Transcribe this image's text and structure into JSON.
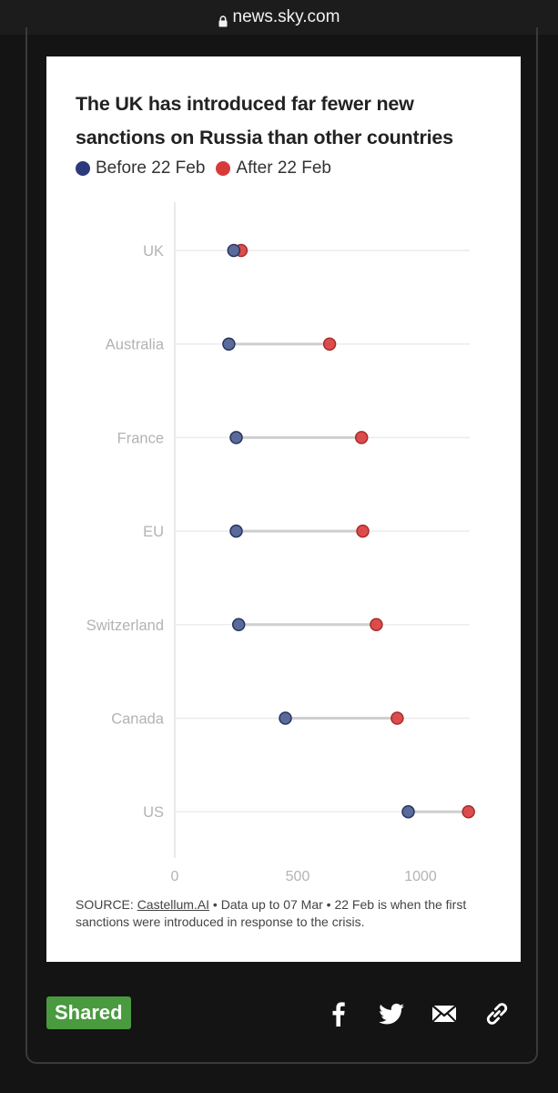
{
  "browser": {
    "url": "news.sky.com"
  },
  "chart_data": {
    "type": "dumbbell",
    "title": "The UK has introduced far fewer new sanctions on Russia than other countries",
    "legend": [
      {
        "name": "Before 22 Feb",
        "color": "#2b3a7a"
      },
      {
        "name": "After 22 Feb",
        "color": "#d83a3a"
      }
    ],
    "categories": [
      "UK",
      "Australia",
      "France",
      "EU",
      "Switzerland",
      "Canada",
      "US"
    ],
    "series": [
      {
        "name": "Before 22 Feb",
        "values": [
          240,
          220,
          250,
          250,
          260,
          450,
          950
        ]
      },
      {
        "name": "After 22 Feb",
        "values": [
          270,
          630,
          760,
          765,
          820,
          905,
          1195
        ]
      }
    ],
    "x_ticks": [
      "0",
      "500",
      "1000"
    ],
    "x_tick_values": [
      0,
      500,
      1000
    ],
    "xlim": [
      0,
      1200
    ],
    "grid": true,
    "legend_position": "top-left"
  },
  "source": {
    "prefix": "SOURCE: ",
    "link": "Castellum.AI",
    "rest": " • Data up to 07 Mar • 22 Feb is when the first sanctions were introduced in response to the crisis."
  },
  "footer": {
    "badge": "Shared",
    "share_icons": [
      "facebook-icon",
      "twitter-icon",
      "email-icon",
      "link-icon"
    ]
  }
}
